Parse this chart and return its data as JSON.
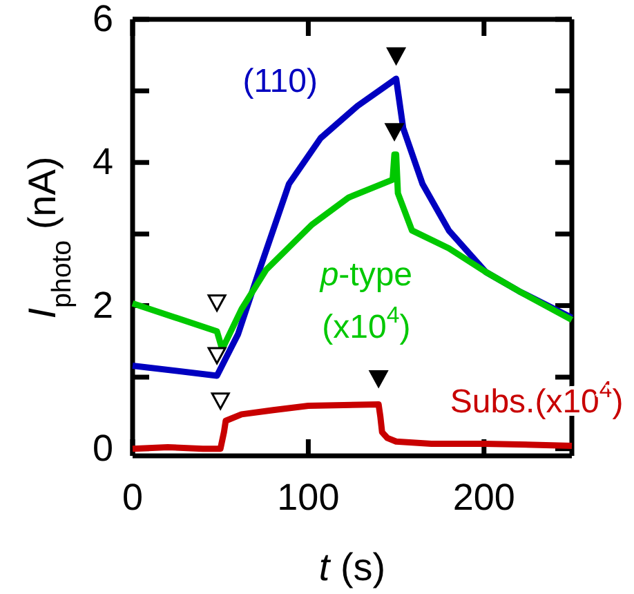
{
  "chart_data": {
    "type": "line",
    "xlabel": "t (s)",
    "ylabel": "I$_{photo}$ (nA)",
    "xlim": [
      0,
      250
    ],
    "ylim": [
      -0.1,
      6
    ],
    "xticks": [
      0,
      100,
      200
    ],
    "yticks": [
      0,
      {
        "value": 1,
        "label": null
      },
      2,
      {
        "value": 3,
        "label": null
      },
      4,
      {
        "value": 5,
        "label": null
      },
      6
    ],
    "legend": false,
    "grid": false,
    "marker": "none",
    "line_style": "solid",
    "series": [
      {
        "name": "(110)",
        "color": "#0000c0",
        "x": [
          0,
          48,
          60,
          71,
          89,
          107,
          128,
          150,
          154,
          165,
          180,
          201,
          220,
          250
        ],
        "values": [
          1.16,
          1.02,
          1.6,
          2.41,
          3.7,
          4.34,
          4.79,
          5.17,
          4.48,
          3.7,
          3.05,
          2.47,
          2.2,
          1.83
        ]
      },
      {
        "name": "p-type (x10$^{4}$)",
        "color": "#00c800",
        "x": [
          0,
          48,
          51,
          62,
          76,
          102,
          123,
          148,
          149,
          150,
          151,
          159,
          180,
          201,
          220,
          250
        ],
        "values": [
          2.03,
          1.64,
          1.39,
          1.95,
          2.5,
          3.13,
          3.51,
          3.76,
          4.11,
          4.11,
          3.57,
          3.05,
          2.8,
          2.47,
          2.2,
          1.8
        ]
      },
      {
        "name": "Subs.(x10$^{4}$)",
        "color": "#c80000",
        "x": [
          0,
          20,
          40,
          50,
          52,
          53,
          62,
          80,
          100,
          120,
          140,
          141,
          142,
          145,
          150,
          170,
          200,
          220,
          250
        ],
        "values": [
          0.0,
          0.02,
          0.0,
          0.0,
          0.23,
          0.39,
          0.48,
          0.54,
          0.6,
          0.61,
          0.62,
          0.45,
          0.23,
          0.15,
          0.1,
          0.07,
          0.07,
          0.06,
          0.04
        ]
      }
    ]
  }
}
